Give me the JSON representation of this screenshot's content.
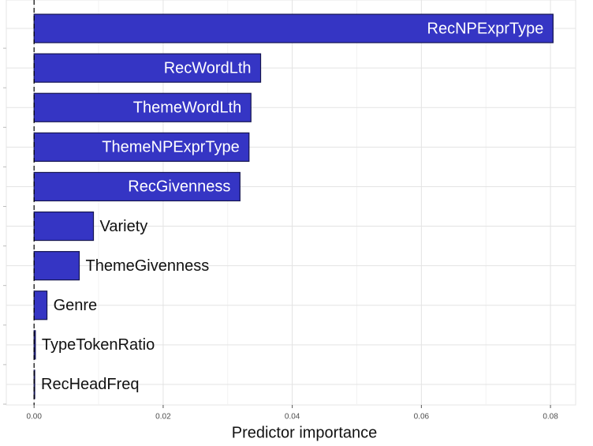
{
  "chart_data": {
    "type": "bar",
    "orientation": "horizontal",
    "x_label": "Predictor importance",
    "categories": [
      "RecNPExprType",
      "RecWordLth",
      "ThemeWordLth",
      "ThemeNPExprType",
      "RecGivenness",
      "Variety",
      "ThemeGivenness",
      "Genre",
      "TypeTokenRatio",
      "RecHeadFreq"
    ],
    "values": [
      0.0804,
      0.0351,
      0.0336,
      0.0333,
      0.0319,
      0.0092,
      0.007,
      0.002,
      0.0002,
      0.0001
    ],
    "color": "#3535c4",
    "xlim": [
      -0.0043,
      0.0839
    ],
    "xticks": [
      {
        "value": 0,
        "label": "0.00"
      },
      {
        "value": 0.02,
        "label": "0.02"
      },
      {
        "value": 0.04,
        "label": "0.04"
      },
      {
        "value": 0.06,
        "label": "0.06"
      },
      {
        "value": 0.08,
        "label": "0.08"
      }
    ],
    "grid": true
  }
}
